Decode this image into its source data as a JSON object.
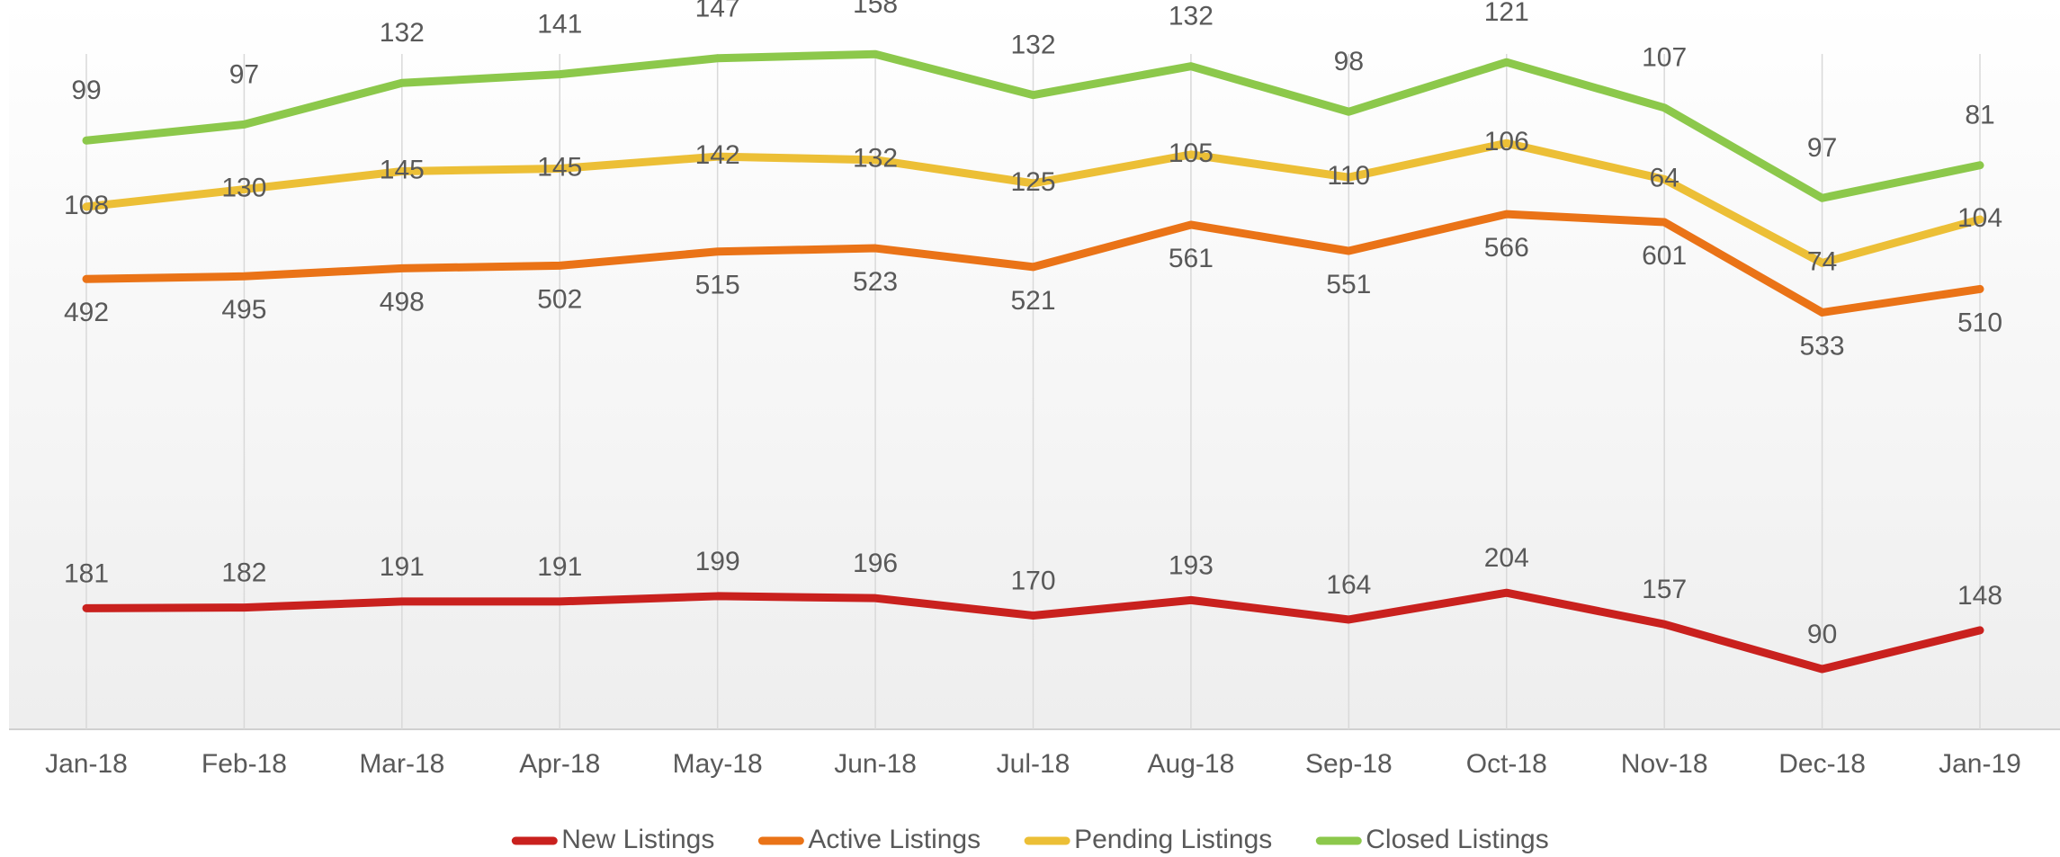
{
  "chart_data": {
    "type": "line",
    "stacked": true,
    "categories": [
      "Jan-18",
      "Feb-18",
      "Mar-18",
      "Apr-18",
      "May-18",
      "Jun-18",
      "Jul-18",
      "Aug-18",
      "Sep-18",
      "Oct-18",
      "Nov-18",
      "Dec-18",
      "Jan-19"
    ],
    "ylim": [
      0,
      1090
    ],
    "grid": true,
    "legend": "bottom",
    "series": [
      {
        "name": "New Listings",
        "color": "#c9211e",
        "values": [
          181,
          182,
          191,
          191,
          199,
          196,
          170,
          193,
          164,
          204,
          157,
          90,
          148
        ]
      },
      {
        "name": "Active Listings",
        "color": "#ea7317",
        "values": [
          492,
          495,
          498,
          502,
          515,
          523,
          521,
          561,
          551,
          566,
          601,
          533,
          510
        ]
      },
      {
        "name": "Pending Listings",
        "color": "#ecbf36",
        "values": [
          108,
          130,
          145,
          145,
          142,
          132,
          125,
          105,
          110,
          106,
          64,
          74,
          104
        ]
      },
      {
        "name": "Closed Listings",
        "color": "#8cc84b",
        "values": [
          99,
          97,
          132,
          141,
          147,
          158,
          132,
          132,
          98,
          121,
          107,
          97,
          81
        ]
      }
    ]
  }
}
